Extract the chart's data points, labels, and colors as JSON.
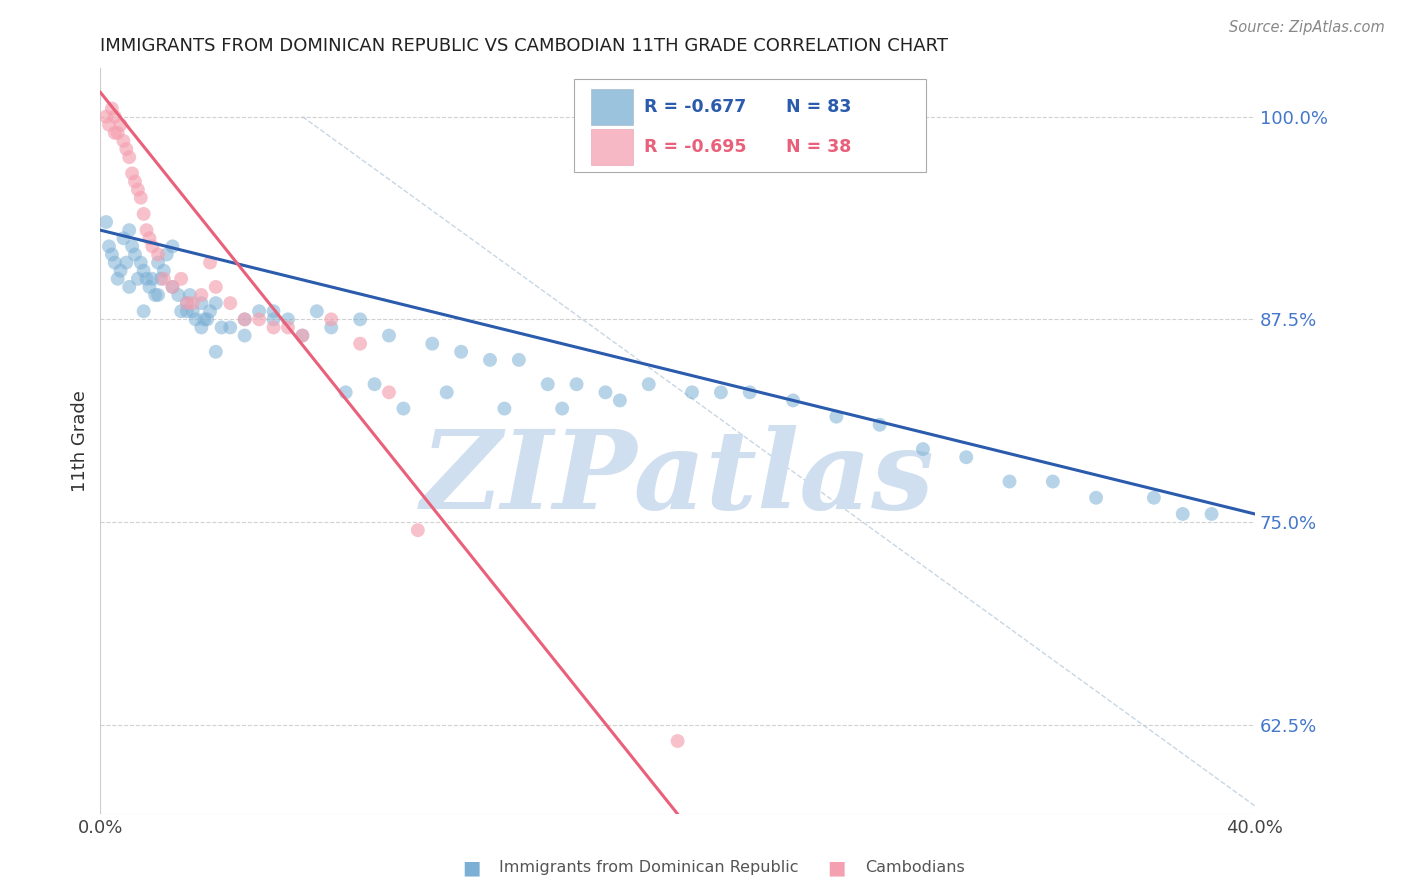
{
  "title": "IMMIGRANTS FROM DOMINICAN REPUBLIC VS CAMBODIAN 11TH GRADE CORRELATION CHART",
  "source": "Source: ZipAtlas.com",
  "ylabel": "11th Grade",
  "xlim": [
    0.0,
    40.0
  ],
  "ylim": [
    57.0,
    103.0
  ],
  "yticks": [
    62.5,
    75.0,
    87.5,
    100.0
  ],
  "ytick_labels": [
    "62.5%",
    "75.0%",
    "87.5%",
    "100.0%"
  ],
  "xtick_positions": [
    0.0,
    8.0,
    16.0,
    24.0,
    32.0,
    40.0
  ],
  "xtick_labels": [
    "0.0%",
    "",
    "",
    "",
    "",
    "40.0%"
  ],
  "legend_r1": "R = -0.677",
  "legend_n1": "N = 83",
  "legend_r2": "R = -0.695",
  "legend_n2": "N = 38",
  "blue_color": "#7BAFD4",
  "pink_color": "#F4A0B0",
  "blue_line_color": "#2B5BAD",
  "pink_line_color": "#E8607A",
  "title_color": "#222222",
  "source_color": "#888888",
  "ytick_color": "#4477CC",
  "xtick_color": "#444444",
  "grid_color": "#CCCCCC",
  "watermark_color": "#D0DFF0",
  "watermark_text": "ZIPatlas",
  "blue_scatter_x": [
    0.2,
    0.3,
    0.4,
    0.5,
    0.6,
    0.7,
    0.8,
    0.9,
    1.0,
    1.1,
    1.2,
    1.3,
    1.4,
    1.5,
    1.6,
    1.7,
    1.8,
    1.9,
    2.0,
    2.1,
    2.2,
    2.3,
    2.5,
    2.7,
    2.8,
    3.0,
    3.1,
    3.2,
    3.3,
    3.5,
    3.6,
    3.7,
    3.8,
    4.0,
    4.2,
    4.5,
    5.0,
    5.5,
    6.0,
    6.5,
    7.5,
    8.0,
    9.0,
    10.0,
    11.5,
    12.5,
    13.5,
    14.5,
    15.5,
    16.5,
    17.5,
    19.0,
    20.5,
    21.5,
    22.5,
    24.0,
    25.5,
    27.0,
    28.5,
    30.0,
    31.5,
    33.0,
    34.5,
    36.5,
    37.5,
    38.5,
    1.0,
    1.5,
    2.0,
    2.5,
    3.0,
    3.5,
    4.0,
    5.0,
    6.0,
    7.0,
    8.5,
    9.5,
    10.5,
    12.0,
    14.0,
    16.0,
    18.0
  ],
  "blue_scatter_y": [
    93.5,
    92.0,
    91.5,
    91.0,
    90.0,
    90.5,
    92.5,
    91.0,
    93.0,
    92.0,
    91.5,
    90.0,
    91.0,
    90.5,
    90.0,
    89.5,
    90.0,
    89.0,
    91.0,
    90.0,
    90.5,
    91.5,
    92.0,
    89.0,
    88.0,
    88.5,
    89.0,
    88.0,
    87.5,
    88.5,
    87.5,
    87.5,
    88.0,
    88.5,
    87.0,
    87.0,
    86.5,
    88.0,
    88.0,
    87.5,
    88.0,
    87.0,
    87.5,
    86.5,
    86.0,
    85.5,
    85.0,
    85.0,
    83.5,
    83.5,
    83.0,
    83.5,
    83.0,
    83.0,
    83.0,
    82.5,
    81.5,
    81.0,
    79.5,
    79.0,
    77.5,
    77.5,
    76.5,
    76.5,
    75.5,
    75.5,
    89.5,
    88.0,
    89.0,
    89.5,
    88.0,
    87.0,
    85.5,
    87.5,
    87.5,
    86.5,
    83.0,
    83.5,
    82.0,
    83.0,
    82.0,
    82.0,
    82.5
  ],
  "pink_scatter_x": [
    0.2,
    0.3,
    0.4,
    0.5,
    0.6,
    0.7,
    0.8,
    0.9,
    1.0,
    1.1,
    1.2,
    1.3,
    1.4,
    1.5,
    1.6,
    1.7,
    1.8,
    2.0,
    2.2,
    2.5,
    2.8,
    3.0,
    3.2,
    3.5,
    4.0,
    5.0,
    6.0,
    7.0,
    8.0,
    9.0,
    10.0,
    11.0,
    3.8,
    4.5,
    5.5,
    6.5,
    20.0,
    0.5
  ],
  "pink_scatter_y": [
    100.0,
    99.5,
    100.5,
    99.0,
    99.0,
    99.5,
    98.5,
    98.0,
    97.5,
    96.5,
    96.0,
    95.5,
    95.0,
    94.0,
    93.0,
    92.5,
    92.0,
    91.5,
    90.0,
    89.5,
    90.0,
    88.5,
    88.5,
    89.0,
    89.5,
    87.5,
    87.0,
    86.5,
    87.5,
    86.0,
    83.0,
    74.5,
    91.0,
    88.5,
    87.5,
    87.0,
    61.5,
    100.0
  ],
  "blue_line_x": [
    0.0,
    40.0
  ],
  "blue_line_y": [
    93.0,
    75.5
  ],
  "pink_line_x": [
    0.0,
    20.0
  ],
  "pink_line_y": [
    101.5,
    57.0
  ],
  "diag_line_x": [
    7.0,
    40.0
  ],
  "diag_line_y": [
    100.0,
    57.5
  ]
}
